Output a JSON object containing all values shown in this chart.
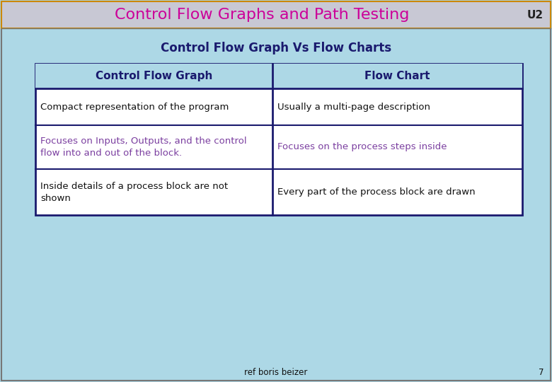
{
  "title": "Control Flow Graphs and Path Testing",
  "title_color": "#cc0099",
  "title_u2": "U2",
  "title_u2_color": "#222222",
  "title_bg_color": "#c8c8d4",
  "title_border_color": "#cc8800",
  "subtitle": "Control Flow Graph Vs Flow Charts",
  "subtitle_color": "#1a1a6e",
  "body_bg_color": "#add8e6",
  "table_border_color": "#1a1a6e",
  "header_bg_color": "#add8e6",
  "header_text_color": "#1a1a6e",
  "col1_header": "Control Flow Graph",
  "col2_header": "Flow Chart",
  "rows": [
    {
      "col1": "Compact representation of the program",
      "col2": "Usually a multi-page description",
      "col1_color": "#111111",
      "col2_color": "#111111"
    },
    {
      "col1": "Focuses on Inputs, Outputs, and the control\nflow into and out of the block.",
      "col2": "Focuses on the process steps inside",
      "col1_color": "#7b3fa0",
      "col2_color": "#7b3fa0"
    },
    {
      "col1": "Inside details of a process block are not\nshown",
      "col2": "Every part of the process block are drawn",
      "col1_color": "#111111",
      "col2_color": "#111111"
    }
  ],
  "footer_text": "ref boris beizer",
  "footer_number": "7",
  "footer_color": "#111111",
  "outer_border_color": "#777777"
}
